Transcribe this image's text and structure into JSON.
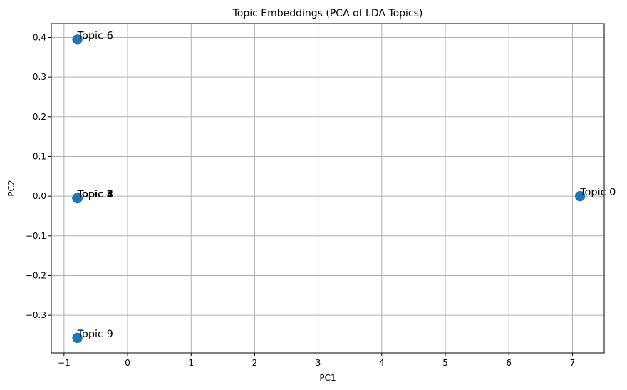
{
  "chart_data": {
    "type": "scatter",
    "title": "Topic Embeddings (PCA of LDA Topics)",
    "xlabel": "PC1",
    "ylabel": "PC2",
    "xlim": [
      -1.2,
      7.5
    ],
    "ylim": [
      -0.395,
      0.435
    ],
    "xticks": [
      -1,
      0,
      1,
      2,
      3,
      4,
      5,
      6,
      7
    ],
    "xtick_labels": [
      "−1",
      "0",
      "1",
      "2",
      "3",
      "4",
      "5",
      "6",
      "7"
    ],
    "yticks": [
      -0.3,
      -0.2,
      -0.1,
      0.0,
      0.1,
      0.2,
      0.3,
      0.4
    ],
    "ytick_labels": [
      "−0.3",
      "−0.2",
      "−0.1",
      "0.0",
      "0.1",
      "0.2",
      "0.3",
      "0.4"
    ],
    "grid": true,
    "marker_color": "#1f77b4",
    "points": [
      {
        "label": "Topic 0",
        "x": 7.12,
        "y": 0.0
      },
      {
        "label": "Topic 1",
        "x": -0.79,
        "y": -0.005
      },
      {
        "label": "Topic 2",
        "x": -0.79,
        "y": -0.005
      },
      {
        "label": "Topic 3",
        "x": -0.79,
        "y": -0.005
      },
      {
        "label": "Topic 4",
        "x": -0.79,
        "y": -0.005
      },
      {
        "label": "Topic 5",
        "x": -0.79,
        "y": -0.005
      },
      {
        "label": "Topic 7",
        "x": -0.79,
        "y": -0.005
      },
      {
        "label": "Topic 8",
        "x": -0.79,
        "y": -0.005
      },
      {
        "label": "Topic 6",
        "x": -0.79,
        "y": 0.395
      },
      {
        "label": "Topic 9",
        "x": -0.79,
        "y": -0.357
      }
    ]
  }
}
